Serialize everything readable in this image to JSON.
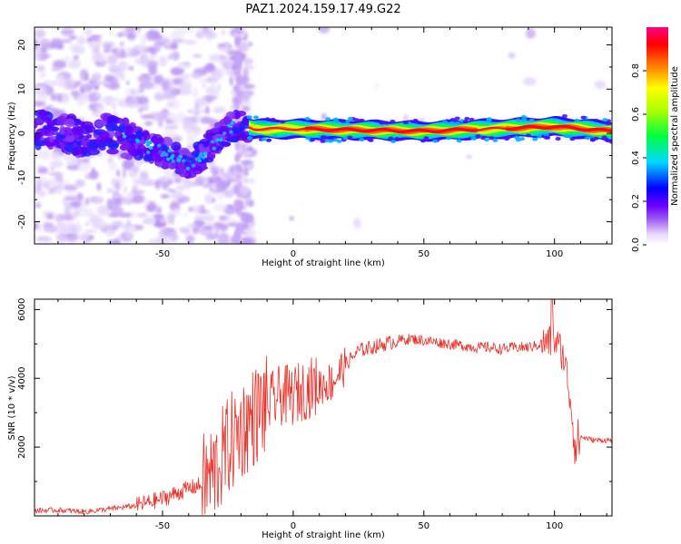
{
  "title": "PAZ1.2024.159.17.49.G22",
  "chart_data": [
    {
      "type": "heatmap",
      "xlabel": "Height of straight line (km)",
      "ylabel": "Frequency (Hz)",
      "xlim": [
        -99,
        122
      ],
      "ylim": [
        -25,
        24
      ],
      "xticks": [
        -50,
        0,
        50,
        100
      ],
      "yticks": [
        -20,
        -10,
        0,
        10,
        20
      ],
      "colorbar": {
        "label": "Normalized spectral amplitude",
        "range": [
          0,
          1
        ],
        "ticks": [
          0.0,
          0.2,
          0.4,
          0.6,
          0.8
        ],
        "colors": [
          "#ffffff",
          "#e6d7fb",
          "#c9a7f5",
          "#8000ff",
          "#0000ff",
          "#00e0ff",
          "#00ff00",
          "#ffff00",
          "#ff8000",
          "#ff0000",
          "#ff0080"
        ]
      },
      "ridge": {
        "description_points": [
          {
            "x": -99,
            "y": 1
          },
          {
            "x": -90,
            "y": 0
          },
          {
            "x": -80,
            "y": -1
          },
          {
            "x": -70,
            "y": 0
          },
          {
            "x": -60,
            "y": -2
          },
          {
            "x": -50,
            "y": -4
          },
          {
            "x": -40,
            "y": -7
          },
          {
            "x": -35,
            "y": -5
          },
          {
            "x": -30,
            "y": -2
          },
          {
            "x": -25,
            "y": 1
          },
          {
            "x": -20,
            "y": 2
          },
          {
            "x": -15,
            "y": 1
          },
          {
            "x": 0,
            "y": 1
          },
          {
            "x": 50,
            "y": 0.5
          },
          {
            "x": 100,
            "y": 1.5
          },
          {
            "x": 122,
            "y": 0.5
          }
        ]
      }
    },
    {
      "type": "line",
      "xlabel": "Height of straight line (km)",
      "ylabel": "SNR (10 * v/v)",
      "xlim": [
        -99,
        122
      ],
      "ylim": [
        0,
        6300
      ],
      "xticks": [
        -50,
        0,
        50,
        100
      ],
      "yticks": [
        2000,
        4000,
        6000
      ],
      "color": "#e8322a",
      "series": [
        {
          "x": [
            -99,
            -90,
            -80,
            -70,
            -60,
            -55,
            -50,
            -45,
            -40,
            -35,
            -30,
            -25,
            -20,
            -15,
            -10,
            -5,
            0,
            5,
            10,
            15,
            20,
            25,
            30,
            35,
            40,
            45,
            50,
            55,
            60,
            65,
            70,
            75,
            80,
            85,
            90,
            95,
            98,
            100,
            102,
            104,
            106,
            108,
            110,
            115,
            122
          ],
          "y": [
            150,
            170,
            120,
            200,
            300,
            400,
            500,
            650,
            800,
            900,
            1300,
            2000,
            2500,
            2900,
            3200,
            3500,
            3500,
            3700,
            3800,
            3900,
            4400,
            4800,
            4900,
            5000,
            5100,
            5150,
            5100,
            5050,
            5000,
            4950,
            4900,
            4900,
            4850,
            4900,
            4900,
            5000,
            5050,
            5100,
            4900,
            4500,
            3500,
            2000,
            2300,
            2200,
            2200
          ]
        }
      ]
    }
  ]
}
